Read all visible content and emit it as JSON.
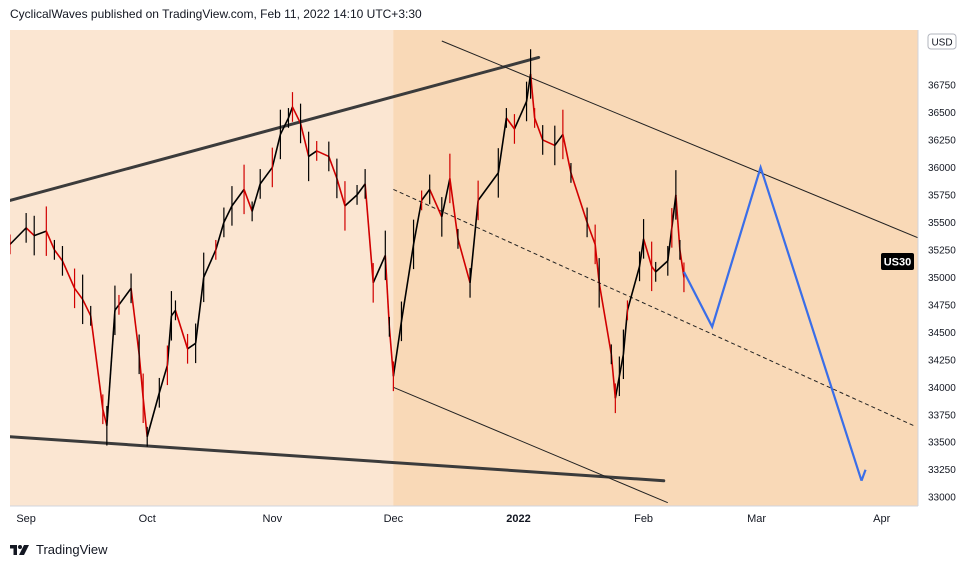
{
  "header": {
    "attribution": "CyclicalWaves published on TradingView.com, Feb 11, 2022 14:10 UTC+3:30"
  },
  "footer": {
    "brand": "TradingView"
  },
  "colors": {
    "background": "#fbe6d2",
    "channel_fill": "#f9d9b7",
    "candle": "#000000",
    "candle_down": "#d10000",
    "projection": "#3a6ee8",
    "wedge_line": "#3b3b3b",
    "symbol_badge": "#000000"
  },
  "chart_data": {
    "type": "line",
    "symbol": "US30",
    "currency": "USD",
    "y_ticks": [
      36750,
      36500,
      36250,
      36000,
      35750,
      35500,
      35250,
      35000,
      34750,
      34500,
      34250,
      34000,
      33750,
      33500,
      33250,
      33000
    ],
    "x_ticks": [
      {
        "label": "Sep",
        "date": "2021-09-01"
      },
      {
        "label": "Oct",
        "date": "2021-10-01"
      },
      {
        "label": "Nov",
        "date": "2021-11-01"
      },
      {
        "label": "Dec",
        "date": "2021-12-01"
      },
      {
        "label": "2022",
        "date": "2022-01-01"
      },
      {
        "label": "Feb",
        "date": "2022-02-01"
      },
      {
        "label": "Mar",
        "date": "2022-03-01"
      },
      {
        "label": "Apr",
        "date": "2022-04-01"
      }
    ],
    "ylim": [
      32920,
      37250
    ],
    "xlim": [
      "2021-08-28",
      "2022-04-10"
    ],
    "price": [
      [
        "2021-08-28",
        35300
      ],
      [
        "2021-09-01",
        35450
      ],
      [
        "2021-09-03",
        35380
      ],
      [
        "2021-09-06",
        35420
      ],
      [
        "2021-09-08",
        35250
      ],
      [
        "2021-09-10",
        35150
      ],
      [
        "2021-09-13",
        34900
      ],
      [
        "2021-09-15",
        34800
      ],
      [
        "2021-09-17",
        34650
      ],
      [
        "2021-09-20",
        33800
      ],
      [
        "2021-09-21",
        33650
      ],
      [
        "2021-09-23",
        34700
      ],
      [
        "2021-09-24",
        34750
      ],
      [
        "2021-09-27",
        34900
      ],
      [
        "2021-09-29",
        34300
      ],
      [
        "2021-09-30",
        33900
      ],
      [
        "2021-10-01",
        33550
      ],
      [
        "2021-10-04",
        33950
      ],
      [
        "2021-10-06",
        34200
      ],
      [
        "2021-10-07",
        34650
      ],
      [
        "2021-10-08",
        34700
      ],
      [
        "2021-10-11",
        34350
      ],
      [
        "2021-10-13",
        34400
      ],
      [
        "2021-10-15",
        35000
      ],
      [
        "2021-10-18",
        35250
      ],
      [
        "2021-10-20",
        35500
      ],
      [
        "2021-10-22",
        35650
      ],
      [
        "2021-10-25",
        35800
      ],
      [
        "2021-10-27",
        35600
      ],
      [
        "2021-10-29",
        35850
      ],
      [
        "2021-11-01",
        36000
      ],
      [
        "2021-11-03",
        36300
      ],
      [
        "2021-11-05",
        36450
      ],
      [
        "2021-11-06",
        36550
      ],
      [
        "2021-11-08",
        36400
      ],
      [
        "2021-11-10",
        36100
      ],
      [
        "2021-11-12",
        36150
      ],
      [
        "2021-11-15",
        36100
      ],
      [
        "2021-11-17",
        35900
      ],
      [
        "2021-11-19",
        35650
      ],
      [
        "2021-11-22",
        35750
      ],
      [
        "2021-11-24",
        35850
      ],
      [
        "2021-11-26",
        34950
      ],
      [
        "2021-11-29",
        35200
      ],
      [
        "2021-11-30",
        34550
      ],
      [
        "2021-12-01",
        34100
      ],
      [
        "2021-12-03",
        34600
      ],
      [
        "2021-12-06",
        35300
      ],
      [
        "2021-12-08",
        35700
      ],
      [
        "2021-12-10",
        35800
      ],
      [
        "2021-12-13",
        35550
      ],
      [
        "2021-12-15",
        35900
      ],
      [
        "2021-12-17",
        35350
      ],
      [
        "2021-12-20",
        34950
      ],
      [
        "2021-12-22",
        35700
      ],
      [
        "2021-12-27",
        35950
      ],
      [
        "2021-12-29",
        36450
      ],
      [
        "2021-12-31",
        36350
      ],
      [
        "2022-01-03",
        36600
      ],
      [
        "2022-01-04",
        36850
      ],
      [
        "2022-01-05",
        36450
      ],
      [
        "2022-01-07",
        36250
      ],
      [
        "2022-01-10",
        36200
      ],
      [
        "2022-01-12",
        36300
      ],
      [
        "2022-01-14",
        35950
      ],
      [
        "2022-01-18",
        35500
      ],
      [
        "2022-01-20",
        35300
      ],
      [
        "2022-01-21",
        34950
      ],
      [
        "2022-01-24",
        34300
      ],
      [
        "2022-01-25",
        33900
      ],
      [
        "2022-01-26",
        34100
      ],
      [
        "2022-01-27",
        34300
      ],
      [
        "2022-01-28",
        34700
      ],
      [
        "2022-01-31",
        35100
      ],
      [
        "2022-02-01",
        35350
      ],
      [
        "2022-02-03",
        35100
      ],
      [
        "2022-02-04",
        35050
      ],
      [
        "2022-02-07",
        35150
      ],
      [
        "2022-02-08",
        35450
      ],
      [
        "2022-02-09",
        35750
      ],
      [
        "2022-02-10",
        35250
      ],
      [
        "2022-02-11",
        35000
      ]
    ],
    "projection": [
      [
        "2022-02-11",
        35050
      ],
      [
        "2022-02-18",
        34550
      ],
      [
        "2022-03-02",
        36000
      ],
      [
        "2022-03-27",
        33150
      ]
    ],
    "projection_arrow_tip": [
      "2022-03-28",
      33250
    ],
    "wedge_upper": [
      [
        "2021-08-28",
        35700
      ],
      [
        "2022-01-06",
        37000
      ]
    ],
    "wedge_lower": [
      [
        "2021-08-28",
        33550
      ],
      [
        "2022-02-06",
        33150
      ]
    ],
    "channel_upper": [
      [
        "2021-12-13",
        37150
      ],
      [
        "2022-04-10",
        35360
      ]
    ],
    "channel_lower": [
      [
        "2021-12-01",
        34000
      ],
      [
        "2022-02-07",
        32950
      ]
    ],
    "channel_mid": [
      [
        "2021-12-01",
        35800
      ],
      [
        "2022-04-09",
        33650
      ]
    ],
    "channel_shade_start": "2021-12-01"
  }
}
